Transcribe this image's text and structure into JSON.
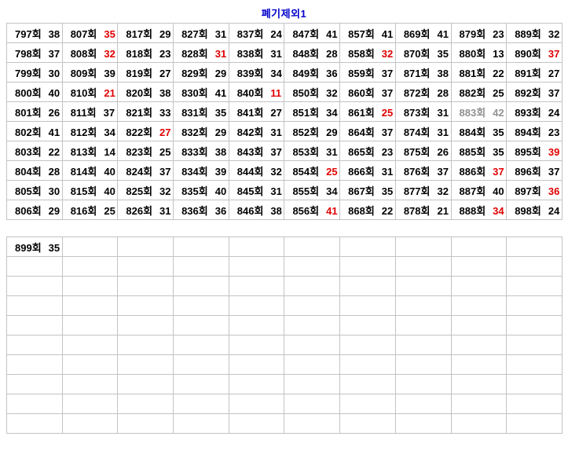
{
  "page": {
    "title": "폐기제외1"
  },
  "colors": {
    "title_blue": "#0000cc",
    "text_black": "#000000",
    "value_red": "#e00000",
    "muted_gray": "#909090",
    "grid_border": "#c3c3c3"
  },
  "round_suffix": "회",
  "legend_note": "color codes: k=black, r=red, g=gray",
  "tables": [
    {
      "name": "results-table-main",
      "rows": 10,
      "cols": 10,
      "fill": "column-major",
      "columns": [
        [
          [
            797,
            38,
            "k"
          ],
          [
            798,
            37,
            "k"
          ],
          [
            799,
            30,
            "k"
          ],
          [
            800,
            40,
            "k"
          ],
          [
            801,
            26,
            "k"
          ],
          [
            802,
            41,
            "k"
          ],
          [
            803,
            22,
            "k"
          ],
          [
            804,
            28,
            "k"
          ],
          [
            805,
            30,
            "k"
          ],
          [
            806,
            29,
            "k"
          ]
        ],
        [
          [
            807,
            35,
            "r"
          ],
          [
            808,
            32,
            "r"
          ],
          [
            809,
            39,
            "k"
          ],
          [
            810,
            21,
            "r"
          ],
          [
            811,
            37,
            "k"
          ],
          [
            812,
            34,
            "k"
          ],
          [
            813,
            14,
            "k"
          ],
          [
            814,
            40,
            "k"
          ],
          [
            815,
            40,
            "k"
          ],
          [
            816,
            25,
            "k"
          ]
        ],
        [
          [
            817,
            29,
            "k"
          ],
          [
            818,
            23,
            "k"
          ],
          [
            819,
            27,
            "k"
          ],
          [
            820,
            38,
            "k"
          ],
          [
            821,
            33,
            "k"
          ],
          [
            822,
            27,
            "r"
          ],
          [
            823,
            25,
            "k"
          ],
          [
            824,
            37,
            "k"
          ],
          [
            825,
            32,
            "k"
          ],
          [
            826,
            31,
            "k"
          ]
        ],
        [
          [
            827,
            31,
            "k"
          ],
          [
            828,
            31,
            "r"
          ],
          [
            829,
            29,
            "k"
          ],
          [
            830,
            41,
            "k"
          ],
          [
            831,
            35,
            "k"
          ],
          [
            832,
            29,
            "k"
          ],
          [
            833,
            38,
            "k"
          ],
          [
            834,
            39,
            "k"
          ],
          [
            835,
            40,
            "k"
          ],
          [
            836,
            36,
            "k"
          ]
        ],
        [
          [
            837,
            24,
            "k"
          ],
          [
            838,
            31,
            "k"
          ],
          [
            839,
            34,
            "k"
          ],
          [
            840,
            11,
            "r"
          ],
          [
            841,
            27,
            "k"
          ],
          [
            842,
            31,
            "k"
          ],
          [
            843,
            37,
            "k"
          ],
          [
            844,
            32,
            "k"
          ],
          [
            845,
            31,
            "k"
          ],
          [
            846,
            38,
            "k"
          ]
        ],
        [
          [
            847,
            41,
            "k"
          ],
          [
            848,
            28,
            "k"
          ],
          [
            849,
            36,
            "k"
          ],
          [
            850,
            32,
            "k"
          ],
          [
            851,
            34,
            "k"
          ],
          [
            852,
            29,
            "k"
          ],
          [
            853,
            31,
            "k"
          ],
          [
            854,
            25,
            "r"
          ],
          [
            855,
            34,
            "k"
          ],
          [
            856,
            41,
            "r"
          ]
        ],
        [
          [
            857,
            41,
            "k"
          ],
          [
            858,
            32,
            "r"
          ],
          [
            859,
            37,
            "k"
          ],
          [
            860,
            37,
            "k"
          ],
          [
            861,
            25,
            "r"
          ],
          [
            864,
            37,
            "k"
          ],
          [
            865,
            23,
            "k"
          ],
          [
            866,
            31,
            "k"
          ],
          [
            867,
            35,
            "k"
          ],
          [
            868,
            22,
            "k"
          ]
        ],
        [
          [
            869,
            41,
            "k"
          ],
          [
            870,
            35,
            "k"
          ],
          [
            871,
            38,
            "k"
          ],
          [
            872,
            28,
            "k"
          ],
          [
            873,
            31,
            "k"
          ],
          [
            874,
            31,
            "k"
          ],
          [
            875,
            26,
            "k"
          ],
          [
            876,
            37,
            "k"
          ],
          [
            877,
            32,
            "k"
          ],
          [
            878,
            21,
            "k"
          ]
        ],
        [
          [
            879,
            23,
            "k"
          ],
          [
            880,
            13,
            "k"
          ],
          [
            881,
            22,
            "k"
          ],
          [
            882,
            25,
            "k"
          ],
          [
            883,
            42,
            "g"
          ],
          [
            884,
            35,
            "k"
          ],
          [
            885,
            35,
            "k"
          ],
          [
            886,
            37,
            "r"
          ],
          [
            887,
            40,
            "k"
          ],
          [
            888,
            34,
            "r"
          ]
        ],
        [
          [
            889,
            32,
            "k"
          ],
          [
            890,
            37,
            "r"
          ],
          [
            891,
            27,
            "k"
          ],
          [
            892,
            37,
            "k"
          ],
          [
            893,
            24,
            "k"
          ],
          [
            894,
            23,
            "k"
          ],
          [
            895,
            39,
            "r"
          ],
          [
            896,
            37,
            "k"
          ],
          [
            897,
            36,
            "r"
          ],
          [
            898,
            24,
            "k"
          ]
        ]
      ]
    },
    {
      "name": "results-table-current",
      "rows": 10,
      "cols": 10,
      "fill": "column-major",
      "columns": [
        [
          [
            899,
            35,
            "k"
          ]
        ]
      ]
    }
  ]
}
